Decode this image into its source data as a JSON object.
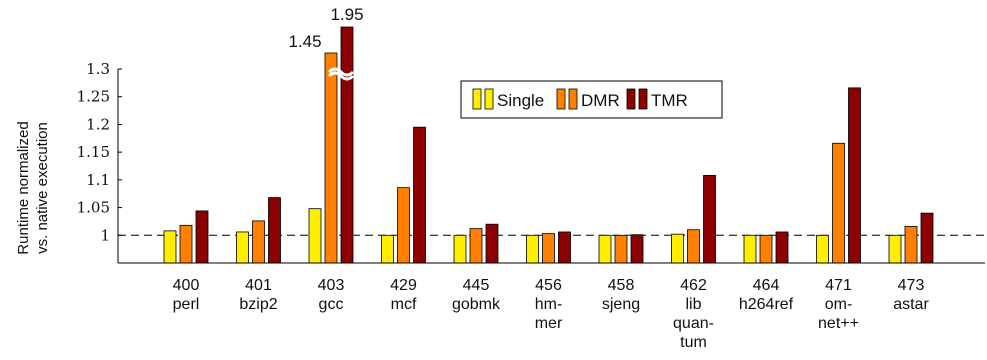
{
  "chart_data": {
    "type": "bar",
    "ylabel": [
      "Runtime normalized",
      "vs. native execution"
    ],
    "ylim": [
      0.95,
      1.3
    ],
    "yticks": [
      "1",
      "1.05",
      "1.1",
      "1.15",
      "1.2",
      "1.25",
      "1.3"
    ],
    "axis_break": true,
    "reference_line": 1.0,
    "legend_position": "top-center",
    "categories": [
      [
        "400",
        "perl"
      ],
      [
        "401",
        "bzip2"
      ],
      [
        "403",
        "gcc"
      ],
      [
        "429",
        "mcf"
      ],
      [
        "445",
        "gobmk"
      ],
      [
        "456",
        "hm-",
        "mer"
      ],
      [
        "458",
        "sjeng"
      ],
      [
        "462",
        "lib",
        "quan-",
        "tum"
      ],
      [
        "464",
        "h264ref"
      ],
      [
        "471",
        "om-",
        "net++"
      ],
      [
        "473",
        "astar"
      ]
    ],
    "series": [
      {
        "name": "Single",
        "color": "#ffee00",
        "values": [
          1.008,
          1.006,
          1.048,
          1.0,
          1.0,
          1.0,
          1.0,
          1.002,
          1.0,
          1.0,
          1.0
        ]
      },
      {
        "name": "DMR",
        "color": "#ff8000",
        "values": [
          1.018,
          1.026,
          1.45,
          1.086,
          1.012,
          1.003,
          1.0,
          1.01,
          1.0,
          1.166,
          1.016
        ]
      },
      {
        "name": "TMR",
        "color": "#8b0000",
        "values": [
          1.044,
          1.068,
          1.95,
          1.195,
          1.02,
          1.006,
          1.001,
          1.108,
          1.006,
          1.266,
          1.04
        ]
      }
    ],
    "annotations": [
      {
        "category_index": 2,
        "series_index": 1,
        "text": "1.45"
      },
      {
        "category_index": 2,
        "series_index": 2,
        "text": "1.95"
      }
    ]
  }
}
